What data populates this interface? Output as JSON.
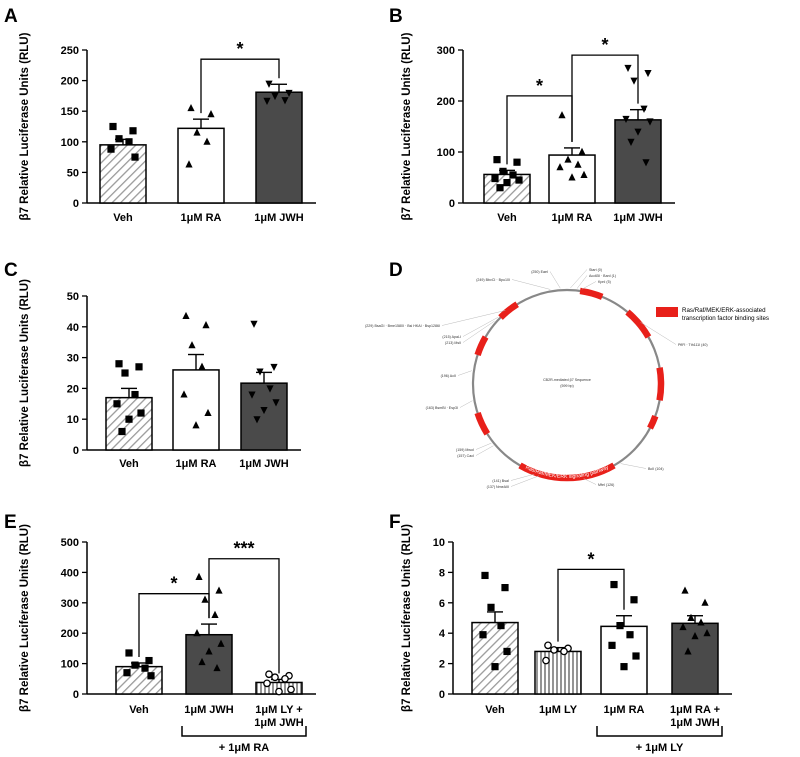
{
  "figure": {
    "y_axis_label": "β7 Relative Luciferase Units (RLU)"
  },
  "colors": {
    "dark_bar": "#4a4a4a",
    "hatch_line": "#9a9a9a",
    "plasmid_red": "#e8201a",
    "plasmid_backbone": "#888888"
  },
  "chart_data": [
    {
      "panel": "A",
      "type": "bar",
      "ylabel": "β7 Relative Luciferase Units (RLU)",
      "ylim": [
        0,
        250
      ],
      "yticks": [
        0,
        50,
        100,
        150,
        200,
        250
      ],
      "categories": [
        "Veh",
        "1μM RA",
        "1μM JWH"
      ],
      "values": [
        95,
        122,
        181
      ],
      "sem": [
        9,
        15,
        13
      ],
      "fills": [
        "hatch",
        "white",
        "dark"
      ],
      "markers": [
        "square",
        "triangle",
        "invtriangle"
      ],
      "points": [
        [
          125,
          118,
          105,
          100,
          88,
          75
        ],
        [
          155,
          145,
          115,
          100,
          63
        ],
        [
          195,
          180,
          175,
          168,
          167
        ]
      ],
      "significance": [
        {
          "from": 1,
          "to": 2,
          "label": "*",
          "y": 235
        }
      ]
    },
    {
      "panel": "B",
      "type": "bar",
      "ylabel": "β7 Relative Luciferase Units (RLU)",
      "ylim": [
        0,
        300
      ],
      "yticks": [
        0,
        100,
        200,
        300
      ],
      "categories": [
        "Veh",
        "1μM RA",
        "1μM JWH"
      ],
      "values": [
        56,
        94,
        163
      ],
      "sem": [
        8,
        14,
        20
      ],
      "fills": [
        "hatch",
        "white",
        "dark"
      ],
      "markers": [
        "square",
        "triangle",
        "invtriangle"
      ],
      "points": [
        [
          85,
          80,
          62,
          55,
          48,
          45,
          40,
          30
        ],
        [
          172,
          100,
          85,
          75,
          70,
          55,
          50
        ],
        [
          265,
          255,
          240,
          185,
          165,
          160,
          140,
          120,
          80
        ]
      ],
      "significance": [
        {
          "from": 0,
          "to": 1,
          "label": "*",
          "y": 210
        },
        {
          "from": 1,
          "to": 2,
          "label": "*",
          "y": 290
        }
      ]
    },
    {
      "panel": "C",
      "type": "bar",
      "ylabel": "β7 Relative Luciferase Units (RLU)",
      "ylim": [
        0,
        50
      ],
      "yticks": [
        0,
        10,
        20,
        30,
        40,
        50
      ],
      "categories": [
        "Veh",
        "1μM RA",
        "1μM JWH"
      ],
      "values": [
        17,
        26,
        21.7
      ],
      "sem": [
        3,
        5,
        3.5
      ],
      "fills": [
        "hatch",
        "white",
        "dark"
      ],
      "markers": [
        "square",
        "triangle",
        "invtriangle"
      ],
      "points": [
        [
          28,
          27,
          25,
          18,
          15,
          12,
          10,
          6
        ],
        [
          43.5,
          40.5,
          34,
          27,
          18,
          12,
          8
        ],
        [
          41,
          27,
          25.5,
          20,
          18,
          15.5,
          13,
          10
        ]
      ],
      "significance": []
    },
    {
      "panel": "E",
      "type": "bar",
      "ylabel": "β7 Relative Luciferase Units (RLU)",
      "ylim": [
        0,
        500
      ],
      "yticks": [
        0,
        100,
        200,
        300,
        400,
        500
      ],
      "categories": [
        "Veh",
        "1μM JWH",
        "1μM LY +\n1μM JWH"
      ],
      "values": [
        90,
        195,
        38
      ],
      "sem": [
        12,
        35,
        10
      ],
      "fills": [
        "hatch",
        "dark",
        "vlines"
      ],
      "markers": [
        "square",
        "triangle",
        "circle-open"
      ],
      "points": [
        [
          135,
          110,
          95,
          85,
          70,
          60
        ],
        [
          385,
          340,
          310,
          260,
          200,
          165,
          140,
          105,
          85
        ],
        [
          65,
          60,
          55,
          50,
          35,
          15,
          8
        ]
      ],
      "significance": [
        {
          "from": 0,
          "to": 1,
          "label": "*",
          "y": 330
        },
        {
          "from": 1,
          "to": 2,
          "label": "***",
          "y": 445
        }
      ],
      "bracket": {
        "from": 1,
        "to": 2,
        "label": "+ 1μM RA"
      }
    },
    {
      "panel": "F",
      "type": "bar",
      "ylabel": "β7 Relative Luciferase Units (RLU)",
      "ylim": [
        0,
        10
      ],
      "yticks": [
        0,
        2,
        4,
        6,
        8,
        10
      ],
      "categories": [
        "Veh",
        "1μM LY",
        "1μM RA",
        "1μM RA +\n1μM JWH"
      ],
      "values": [
        4.7,
        2.8,
        4.45,
        4.65
      ],
      "sem": [
        0.7,
        0.25,
        0.7,
        0.5
      ],
      "fills": [
        "hatch",
        "vlines",
        "white",
        "dark"
      ],
      "markers": [
        "square",
        "circle-open",
        "square",
        "triangle"
      ],
      "points": [
        [
          7.8,
          7.0,
          5.7,
          4.5,
          3.9,
          2.8,
          1.8
        ],
        [
          3.2,
          3.0,
          2.9,
          2.8,
          2.2
        ],
        [
          7.2,
          6.2,
          4.5,
          3.9,
          3.2,
          2.5,
          1.8
        ],
        [
          6.8,
          6.0,
          5.0,
          4.7,
          4.4,
          4.0,
          3.8,
          2.8
        ]
      ],
      "significance": [
        {
          "from": 1,
          "to": 2,
          "label": "*",
          "y": 8.2
        }
      ],
      "bracket": {
        "from": 2,
        "to": 3,
        "label": "+ 1μM LY"
      }
    }
  ],
  "plasmid": {
    "panel": "D",
    "center_title": "CB2R-mediated β7 Sequence",
    "center_subtitle": "(599 bp)",
    "arc_label": "Ras/Raf/MEK/ERK signaling pathway",
    "legend_text_1": "Ras/Raf/MEK/ERK-associated",
    "legend_text_2": "transcription factor binding sites",
    "sites": [
      {
        "text": "(250)  EaeI"
      },
      {
        "text": "(249)  BbvCI  ·  Bpu10I"
      },
      {
        "text": "Start  (0)"
      },
      {
        "text": "Acc65I  ·  BanI  (1)"
      },
      {
        "text": "KpnI  (5)"
      },
      {
        "text": "(229)  BsaGI  ·  Bme1580I  ·  Bsi HKAI  ·  Bsp1286I"
      },
      {
        "text": "(215)  ApaLI"
      },
      {
        "text": "(213)  MslI"
      },
      {
        "text": "PflFI  ·  Tth111I  (40)"
      },
      {
        "text": "(196)  AcII"
      },
      {
        "text": "(163)  BsmBI  ·  Esp3I"
      },
      {
        "text": "(159)  MwoI"
      },
      {
        "text": "(157)  CacI"
      },
      {
        "text": "BcII  (104)"
      },
      {
        "text": "(141)  BsaI"
      },
      {
        "text": "(137)  NmeAIII"
      },
      {
        "text": "MfeI  (126)"
      }
    ]
  },
  "panel_labels": [
    "A",
    "B",
    "C",
    "D",
    "E",
    "F"
  ]
}
